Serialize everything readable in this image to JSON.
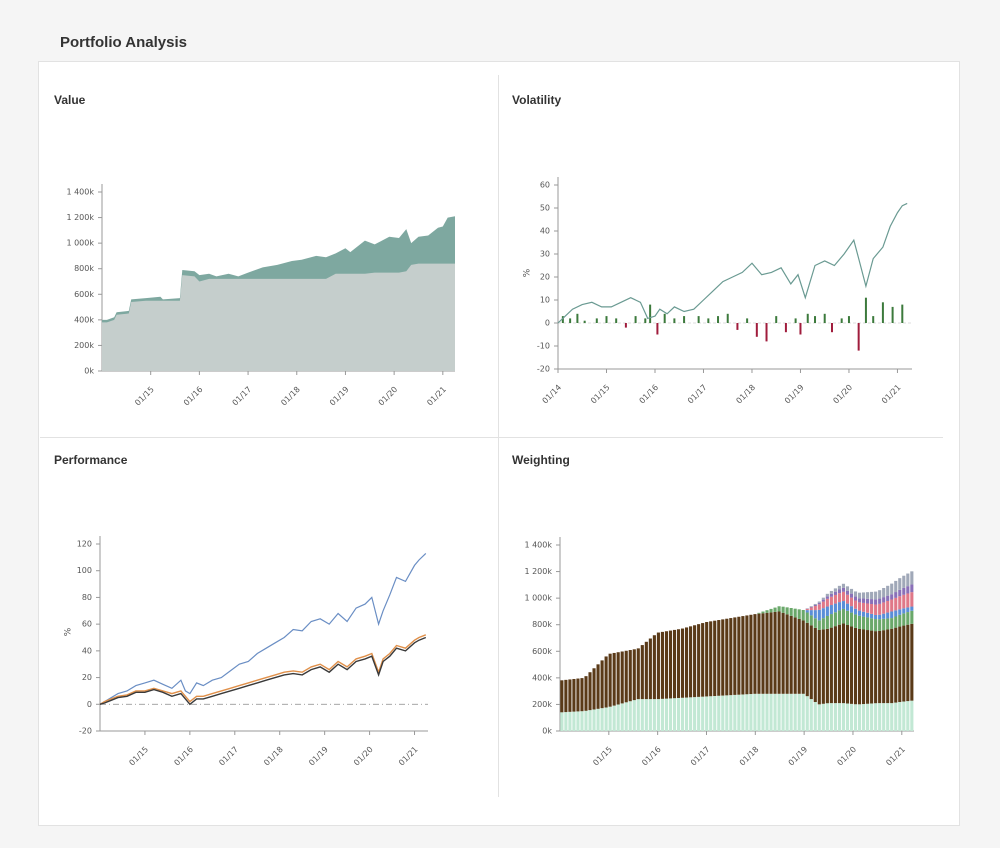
{
  "page": {
    "title": "Portfolio Analysis"
  },
  "colors": {
    "value_total": "#7ea8a0",
    "value_base": "#c5cecc",
    "vol_line": "#6a9a92",
    "vol_pos": "#3c7a3c",
    "vol_neg": "#a01c3c",
    "perf_blue": "#6a8ec4",
    "perf_orange": "#e0904a",
    "perf_dark": "#3a3a3a",
    "perf_green": "#4a7a50",
    "w_base": "#c2e8d4",
    "w_brown": "#5a3a18",
    "w_green": "#6aa86a",
    "w_blue": "#5a8ed8",
    "w_pink": "#e07888",
    "w_purple": "#8a70b8",
    "w_gray": "#a0a8b8"
  },
  "chart_data": [
    {
      "id": "value",
      "type": "area",
      "title": "Value",
      "x_ticks": [
        "01/15",
        "01/16",
        "01/17",
        "01/18",
        "01/19",
        "01/20",
        "01/21"
      ],
      "y_ticks": [
        "0k",
        "200k",
        "400k",
        "600k",
        "800k",
        "1 000k",
        "1 200k",
        "1 400k"
      ],
      "ylim": [
        0,
        1400
      ],
      "x": [
        2014.0,
        2014.1,
        2014.25,
        2014.3,
        2014.55,
        2014.6,
        2014.9,
        2015.2,
        2015.25,
        2015.6,
        2015.65,
        2015.9,
        2016.0,
        2016.2,
        2016.35,
        2016.6,
        2016.8,
        2017.0,
        2017.3,
        2017.6,
        2017.9,
        2018.1,
        2018.4,
        2018.6,
        2018.8,
        2019.0,
        2019.1,
        2019.4,
        2019.6,
        2019.9,
        2020.1,
        2020.25,
        2020.35,
        2020.5,
        2020.7,
        2020.9,
        2021.0,
        2021.1,
        2021.25
      ],
      "series": [
        {
          "values": [
            400,
            400,
            420,
            460,
            470,
            560,
            570,
            580,
            560,
            570,
            790,
            780,
            750,
            760,
            740,
            760,
            740,
            770,
            810,
            830,
            860,
            870,
            900,
            890,
            920,
            960,
            930,
            1020,
            990,
            1050,
            1040,
            1110,
            1000,
            1050,
            1060,
            1120,
            1130,
            1200,
            1210
          ]
        },
        {
          "values": [
            380,
            380,
            400,
            440,
            450,
            540,
            550,
            550,
            550,
            550,
            750,
            740,
            700,
            720,
            720,
            720,
            720,
            720,
            720,
            720,
            720,
            720,
            720,
            720,
            760,
            760,
            760,
            760,
            770,
            770,
            770,
            780,
            830,
            840,
            840,
            840,
            840,
            840,
            840
          ]
        }
      ]
    },
    {
      "id": "volatility",
      "type": "line",
      "title": "Volatility",
      "ylabel": "%",
      "x_ticks": [
        "01/14",
        "01/15",
        "01/16",
        "01/17",
        "01/18",
        "01/19",
        "01/20",
        "01/21"
      ],
      "y_ticks": [
        "-20",
        "-10",
        "0",
        "10",
        "20",
        "30",
        "40",
        "50",
        "60"
      ],
      "ylim": [
        -20,
        60
      ],
      "line_x": [
        2014.0,
        2014.15,
        2014.3,
        2014.5,
        2014.7,
        2014.9,
        2015.1,
        2015.3,
        2015.5,
        2015.7,
        2015.85,
        2016.0,
        2016.1,
        2016.25,
        2016.4,
        2016.6,
        2016.8,
        2017.0,
        2017.2,
        2017.4,
        2017.6,
        2017.8,
        2018.0,
        2018.2,
        2018.4,
        2018.6,
        2018.8,
        2018.95,
        2019.1,
        2019.3,
        2019.5,
        2019.7,
        2019.9,
        2020.1,
        2020.2,
        2020.35,
        2020.5,
        2020.7,
        2020.85,
        2021.0,
        2021.1,
        2021.2
      ],
      "line_y": [
        0,
        3,
        6,
        8,
        9,
        7,
        7,
        9,
        11,
        9,
        2,
        3,
        6,
        4,
        7,
        5,
        6,
        10,
        14,
        18,
        20,
        22,
        26,
        21,
        22,
        24,
        17,
        21,
        11,
        25,
        27,
        25,
        30,
        36,
        28,
        16,
        28,
        33,
        42,
        48,
        51,
        52
      ],
      "bar_x": [
        2014.1,
        2014.25,
        2014.4,
        2014.55,
        2014.8,
        2015.0,
        2015.2,
        2015.4,
        2015.6,
        2015.8,
        2015.9,
        2016.05,
        2016.2,
        2016.4,
        2016.6,
        2016.9,
        2017.1,
        2017.3,
        2017.5,
        2017.7,
        2017.9,
        2018.1,
        2018.3,
        2018.5,
        2018.7,
        2018.9,
        2019.0,
        2019.15,
        2019.3,
        2019.5,
        2019.65,
        2019.85,
        2020.0,
        2020.2,
        2020.35,
        2020.5,
        2020.7,
        2020.9,
        2021.1
      ],
      "bar_values": [
        3,
        2,
        4,
        1,
        2,
        3,
        2,
        -2,
        3,
        2,
        8,
        -5,
        4,
        2,
        3,
        3,
        2,
        3,
        4,
        -3,
        2,
        -6,
        -8,
        3,
        -4,
        2,
        -5,
        4,
        3,
        4,
        -4,
        2,
        3,
        -12,
        11,
        3,
        9,
        7,
        8
      ]
    },
    {
      "id": "performance",
      "type": "line",
      "title": "Performance",
      "ylabel": "%",
      "x_ticks": [
        "01/15",
        "01/16",
        "01/17",
        "01/18",
        "01/19",
        "01/20",
        "01/21"
      ],
      "y_ticks": [
        "-20",
        "0",
        "20",
        "40",
        "60",
        "80",
        "100",
        "120"
      ],
      "ylim": [
        -20,
        120
      ],
      "x": [
        2014.0,
        2014.1,
        2014.25,
        2014.4,
        2014.6,
        2014.8,
        2015.0,
        2015.2,
        2015.4,
        2015.6,
        2015.8,
        2015.9,
        2016.0,
        2016.15,
        2016.3,
        2016.5,
        2016.7,
        2016.9,
        2017.1,
        2017.3,
        2017.5,
        2017.7,
        2017.9,
        2018.1,
        2018.3,
        2018.5,
        2018.7,
        2018.9,
        2019.1,
        2019.3,
        2019.5,
        2019.7,
        2019.9,
        2020.05,
        2020.2,
        2020.3,
        2020.45,
        2020.6,
        2020.8,
        2021.0,
        2021.1,
        2021.25
      ],
      "series": [
        {
          "color_key": "perf_blue",
          "values": [
            0,
            2,
            5,
            8,
            10,
            14,
            16,
            18,
            15,
            12,
            18,
            10,
            8,
            16,
            14,
            18,
            20,
            25,
            30,
            32,
            38,
            42,
            46,
            50,
            56,
            55,
            62,
            64,
            60,
            68,
            62,
            72,
            75,
            80,
            60,
            70,
            82,
            95,
            92,
            104,
            108,
            113
          ]
        },
        {
          "color_key": "perf_orange",
          "values": [
            0,
            2,
            4,
            6,
            7,
            10,
            10,
            12,
            10,
            8,
            10,
            6,
            2,
            6,
            6,
            8,
            10,
            12,
            14,
            16,
            18,
            20,
            22,
            24,
            25,
            24,
            28,
            30,
            26,
            32,
            28,
            34,
            36,
            38,
            24,
            34,
            38,
            44,
            42,
            48,
            50,
            52
          ]
        },
        {
          "color_key": "perf_dark",
          "values": [
            0,
            1,
            3,
            5,
            6,
            9,
            9,
            11,
            9,
            6,
            8,
            4,
            0,
            4,
            4,
            6,
            8,
            10,
            12,
            14,
            16,
            18,
            20,
            22,
            23,
            22,
            26,
            28,
            24,
            30,
            26,
            32,
            34,
            36,
            22,
            32,
            36,
            42,
            40,
            46,
            48,
            50
          ]
        }
      ],
      "baseline": 0
    },
    {
      "id": "weighting",
      "type": "bar",
      "title": "Weighting",
      "x_ticks": [
        "01/15",
        "01/16",
        "01/17",
        "01/18",
        "01/19",
        "01/20",
        "01/21"
      ],
      "y_ticks": [
        "0k",
        "200k",
        "400k",
        "600k",
        "800k",
        "1 000k",
        "1 200k",
        "1 400k"
      ],
      "ylim": [
        0,
        1400
      ],
      "x_start": 2014.0,
      "x_end": 2021.25,
      "bars": 88,
      "base_anchor_x": [
        2014.0,
        2014.5,
        2015.0,
        2015.6,
        2016.0,
        2016.5,
        2017.0,
        2017.5,
        2018.0,
        2018.5,
        2019.0,
        2019.3,
        2019.5,
        2019.8,
        2020.1,
        2020.5,
        2020.8,
        2021.0,
        2021.25
      ],
      "base_anchor_y": [
        140,
        150,
        180,
        240,
        240,
        250,
        260,
        270,
        280,
        280,
        280,
        200,
        210,
        210,
        200,
        210,
        210,
        220,
        230
      ],
      "brown_anchor_y": [
        240,
        250,
        400,
        380,
        500,
        520,
        560,
        580,
        600,
        620,
        550,
        560,
        560,
        600,
        570,
        540,
        560,
        570,
        580
      ],
      "green_anchor_y": [
        0,
        0,
        0,
        0,
        0,
        0,
        0,
        0,
        0,
        40,
        80,
        70,
        100,
        110,
        100,
        90,
        80,
        90,
        100
      ],
      "blue_anchor_y": [
        0,
        0,
        0,
        0,
        0,
        0,
        0,
        0,
        0,
        0,
        0,
        80,
        70,
        60,
        40,
        30,
        50,
        40,
        30
      ],
      "pink_anchor_y": [
        0,
        0,
        0,
        0,
        0,
        0,
        0,
        0,
        0,
        0,
        0,
        40,
        60,
        70,
        60,
        80,
        90,
        100,
        110
      ],
      "purple_anchor_y": [
        0,
        0,
        0,
        0,
        0,
        0,
        0,
        0,
        0,
        0,
        0,
        10,
        20,
        30,
        30,
        40,
        40,
        50,
        60
      ],
      "gray_anchor_y": [
        0,
        0,
        0,
        0,
        0,
        0,
        0,
        0,
        0,
        0,
        0,
        10,
        20,
        30,
        40,
        60,
        80,
        90,
        100
      ]
    }
  ]
}
